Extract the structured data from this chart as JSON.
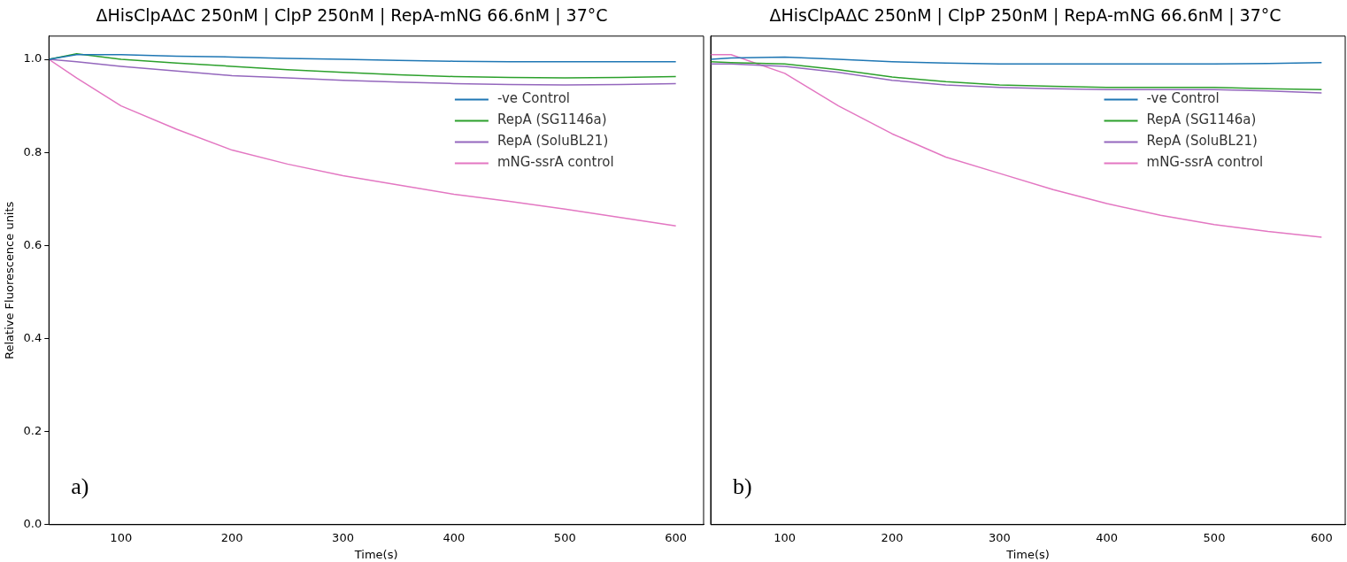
{
  "chart_data": [
    {
      "type": "line",
      "title": "ΔHisClpAΔC 250nM | ClpP 250nM | RepA-mNG 66.6nM | 37°C",
      "xlabel": "Time(s)",
      "ylabel": "Relative Fluorescence units",
      "xlim": [
        35,
        625
      ],
      "ylim": [
        0,
        1.05
      ],
      "xticks": [
        100,
        200,
        300,
        400,
        500,
        600
      ],
      "yticks": [
        {
          "value": 0,
          "label": "0.0"
        },
        0.2,
        0.4,
        0.6,
        0.8,
        {
          "value": 1,
          "label": "1.0"
        }
      ],
      "grid": false,
      "legend": "right",
      "marker": "none",
      "annotations": [
        "a)"
      ],
      "x": [
        35,
        60,
        100,
        150,
        200,
        250,
        300,
        350,
        400,
        450,
        500,
        550,
        600
      ],
      "series": [
        {
          "name": "-ve Control",
          "color": "#1f77b4",
          "values": [
            1.0,
            1.01,
            1.01,
            1.007,
            1.005,
            1.002,
            1.0,
            0.998,
            0.996,
            0.995,
            0.995,
            0.995,
            0.995
          ]
        },
        {
          "name": "RepA (SG1146a)",
          "color": "#2ca02c",
          "values": [
            1.0,
            1.012,
            1.0,
            0.992,
            0.985,
            0.978,
            0.972,
            0.967,
            0.963,
            0.961,
            0.96,
            0.961,
            0.963
          ]
        },
        {
          "name": "RepA (SoluBL21)",
          "color": "#9467bd",
          "values": [
            1.0,
            0.995,
            0.985,
            0.975,
            0.965,
            0.96,
            0.955,
            0.951,
            0.948,
            0.946,
            0.945,
            0.946,
            0.948
          ]
        },
        {
          "name": "mNG-ssrA control",
          "color": "#e377c2",
          "values": [
            1.0,
            0.96,
            0.9,
            0.85,
            0.805,
            0.775,
            0.75,
            0.73,
            0.71,
            0.695,
            0.678,
            0.66,
            0.642
          ]
        }
      ]
    },
    {
      "type": "line",
      "title": "ΔHisClpAΔC 250nM | ClpP 250nM | RepA-mNG 66.6nM | 37°C",
      "xlabel": "Time(s)",
      "xlim": [
        31,
        622
      ],
      "ylim": [
        0,
        1.05
      ],
      "xticks": [
        100,
        200,
        300,
        400,
        500,
        600
      ],
      "tick_labels": "x",
      "grid": false,
      "legend": "right",
      "marker": "none",
      "annotations": [
        "b)"
      ],
      "x": [
        31,
        50,
        100,
        150,
        200,
        250,
        300,
        350,
        400,
        450,
        500,
        550,
        600
      ],
      "series": [
        {
          "name": "-ve Control",
          "color": "#1f77b4",
          "values": [
            1.0,
            1.003,
            1.005,
            1.0,
            0.995,
            0.992,
            0.99,
            0.99,
            0.99,
            0.99,
            0.99,
            0.991,
            0.993
          ]
        },
        {
          "name": "RepA (SG1146a)",
          "color": "#2ca02c",
          "values": [
            0.995,
            0.993,
            0.99,
            0.978,
            0.962,
            0.952,
            0.945,
            0.942,
            0.94,
            0.94,
            0.94,
            0.937,
            0.935
          ]
        },
        {
          "name": "RepA (SoluBL21)",
          "color": "#9467bd",
          "values": [
            0.99,
            0.99,
            0.985,
            0.972,
            0.955,
            0.945,
            0.94,
            0.937,
            0.935,
            0.935,
            0.935,
            0.932,
            0.928
          ]
        },
        {
          "name": "mNG-ssrA control",
          "color": "#e377c2",
          "values": [
            1.01,
            1.01,
            0.97,
            0.9,
            0.84,
            0.79,
            0.755,
            0.72,
            0.69,
            0.665,
            0.645,
            0.63,
            0.618
          ]
        }
      ]
    }
  ]
}
